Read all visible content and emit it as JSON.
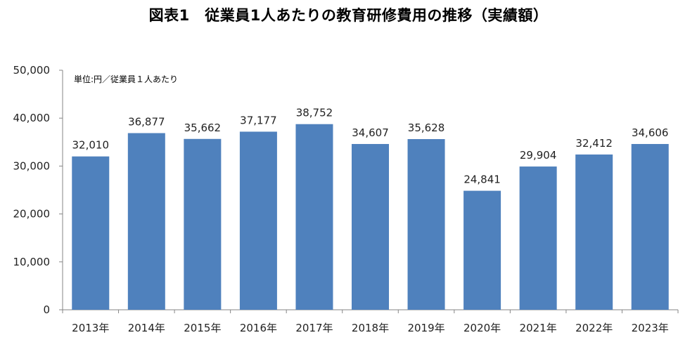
{
  "chart_data": {
    "type": "bar",
    "title": "図表1　従業員1人あたりの教育研修費用の推移（実績額）",
    "unit_note": "単位:円／従業員１人あたり",
    "categories": [
      "2013年",
      "2014年",
      "2015年",
      "2016年",
      "2017年",
      "2018年",
      "2019年",
      "2020年",
      "2021年",
      "2022年",
      "2023年"
    ],
    "values": [
      32010,
      36877,
      35662,
      37177,
      38752,
      34607,
      35628,
      24841,
      29904,
      32412,
      34606
    ],
    "value_labels": [
      "32,010",
      "36,877",
      "35,662",
      "37,177",
      "38,752",
      "34,607",
      "35,628",
      "24,841",
      "29,904",
      "32,412",
      "34,606"
    ],
    "yticks": [
      0,
      10000,
      20000,
      30000,
      40000,
      50000
    ],
    "ytick_labels": [
      "0",
      "10,000",
      "20,000",
      "30,000",
      "40,000",
      "50,000"
    ],
    "ylim": [
      0,
      50000
    ],
    "grid": false,
    "legend": "none",
    "bar_color": "#4f81bd",
    "axis_color": "#868686"
  }
}
